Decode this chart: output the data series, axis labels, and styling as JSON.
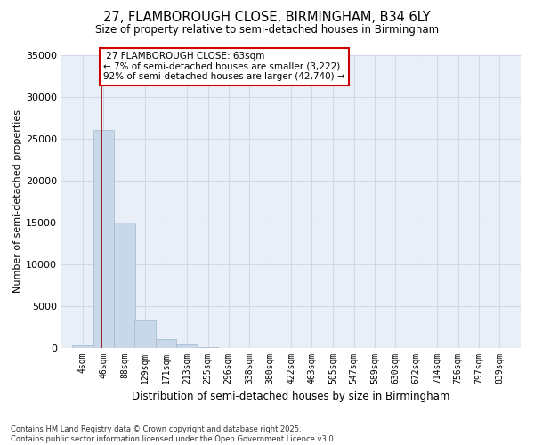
{
  "title1": "27, FLAMBOROUGH CLOSE, BIRMINGHAM, B34 6LY",
  "title2": "Size of property relative to semi-detached houses in Birmingham",
  "xlabel": "Distribution of semi-detached houses by size in Birmingham",
  "ylabel": "Number of semi-detached properties",
  "property_label": "27 FLAMBOROUGH CLOSE: 63sqm",
  "pct_smaller": 7,
  "n_smaller": 3222,
  "pct_larger": 92,
  "n_larger": 42740,
  "bin_labels": [
    "4sqm",
    "46sqm",
    "88sqm",
    "129sqm",
    "171sqm",
    "213sqm",
    "255sqm",
    "296sqm",
    "338sqm",
    "380sqm",
    "422sqm",
    "463sqm",
    "505sqm",
    "547sqm",
    "589sqm",
    "630sqm",
    "672sqm",
    "714sqm",
    "756sqm",
    "797sqm",
    "839sqm"
  ],
  "bin_edges": [
    4,
    46,
    88,
    129,
    171,
    213,
    255,
    296,
    338,
    380,
    422,
    463,
    505,
    547,
    589,
    630,
    672,
    714,
    756,
    797,
    839
  ],
  "bar_values": [
    350,
    26000,
    15000,
    3300,
    1050,
    450,
    150,
    50,
    10,
    5,
    2,
    1,
    0,
    0,
    0,
    0,
    0,
    0,
    0,
    0
  ],
  "bar_color": "#c8d8e8",
  "bar_edge_color": "#a0b8d0",
  "vline_color": "#880000",
  "vline_x": 63,
  "ylim": [
    0,
    35000
  ],
  "yticks": [
    0,
    5000,
    10000,
    15000,
    20000,
    25000,
    30000,
    35000
  ],
  "grid_color": "#d0d8e8",
  "bg_color": "#eaeff7",
  "annotation_box_color": "#cc0000",
  "footer1": "Contains HM Land Registry data © Crown copyright and database right 2025.",
  "footer2": "Contains public sector information licensed under the Open Government Licence v3.0."
}
